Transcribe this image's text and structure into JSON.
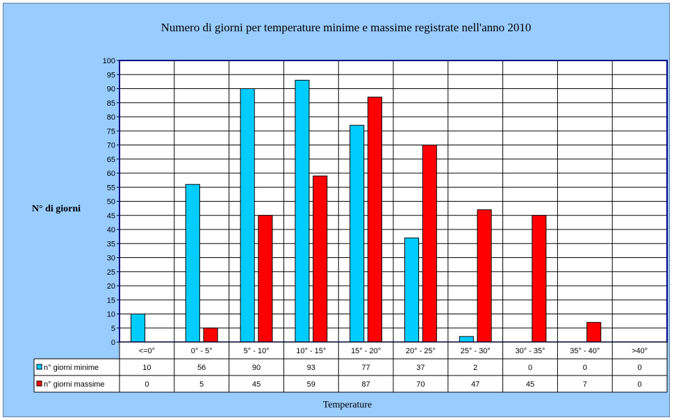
{
  "chart_data": {
    "type": "bar",
    "title": "Numero di giorni per temperature minime e massime registrate nell'anno 2010",
    "ylabel": "N° di giorni",
    "xlabel": "Temperature",
    "ylim": [
      0,
      100
    ],
    "ytick_step": 5,
    "grid": true,
    "legend": "data-table",
    "categories": [
      "<=0°",
      "0° - 5°",
      "5° - 10°",
      "10° - 15°",
      "15° - 20°",
      "20° - 25°",
      "25° - 30°",
      "30° - 35°",
      "35° - 40°",
      ">40°"
    ],
    "series": [
      {
        "name": "n° giorni minime",
        "color": "#00ccff",
        "values": [
          10,
          56,
          90,
          93,
          77,
          37,
          2,
          0,
          0,
          0
        ]
      },
      {
        "name": "n° giorni massime",
        "color": "#ff0000",
        "values": [
          0,
          5,
          45,
          59,
          87,
          70,
          47,
          45,
          7,
          0
        ]
      }
    ]
  }
}
